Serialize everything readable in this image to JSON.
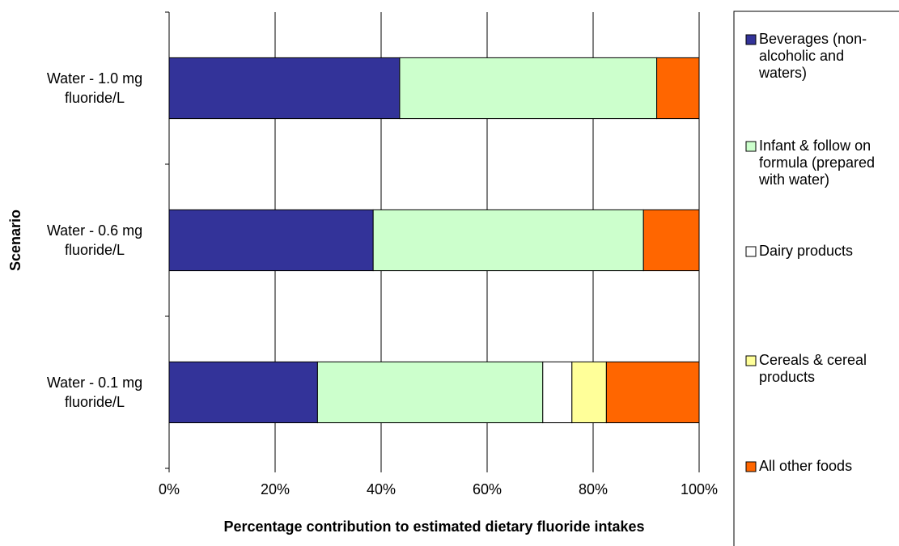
{
  "chart_data": {
    "type": "bar",
    "orientation": "horizontal",
    "stacked": "percent",
    "xlabel": "Percentage contribution to estimated dietary fluoride intakes",
    "ylabel": "Scenario",
    "xlim": [
      0,
      100
    ],
    "x_ticks": [
      "0%",
      "20%",
      "40%",
      "60%",
      "80%",
      "100%"
    ],
    "grid": "vertical",
    "legend_position": "right",
    "categories": [
      [
        "Water - 1.0 mg",
        "fluoride/L"
      ],
      [
        "Water - 0.6 mg",
        "fluoride/L"
      ],
      [
        "Water - 0.1 mg",
        "fluoride/L"
      ]
    ],
    "series": [
      {
        "name": "Beverages (non-alcoholic and waters)",
        "legend_lines": [
          "Beverages (non-",
          "alcoholic and",
          "waters)"
        ],
        "color": "#333399",
        "values": [
          43.5,
          38.5,
          28
        ]
      },
      {
        "name": "Infant & follow on formula (prepared with water)",
        "legend_lines": [
          "Infant & follow on",
          "formula (prepared",
          "with water)"
        ],
        "color": "#CCFFCC",
        "values": [
          48.5,
          51,
          42.5
        ]
      },
      {
        "name": "Dairy products",
        "legend_lines": [
          "Dairy products"
        ],
        "color": "#FFFFFF",
        "values": [
          0,
          0,
          5.5
        ]
      },
      {
        "name": "Cereals & cereal products",
        "legend_lines": [
          "Cereals & cereal",
          "products"
        ],
        "color": "#FFFF99",
        "values": [
          0,
          0,
          6.5
        ]
      },
      {
        "name": "All other foods",
        "legend_lines": [
          "All other foods"
        ],
        "color": "#FF6600",
        "values": [
          8,
          10.5,
          17.5
        ]
      }
    ]
  }
}
